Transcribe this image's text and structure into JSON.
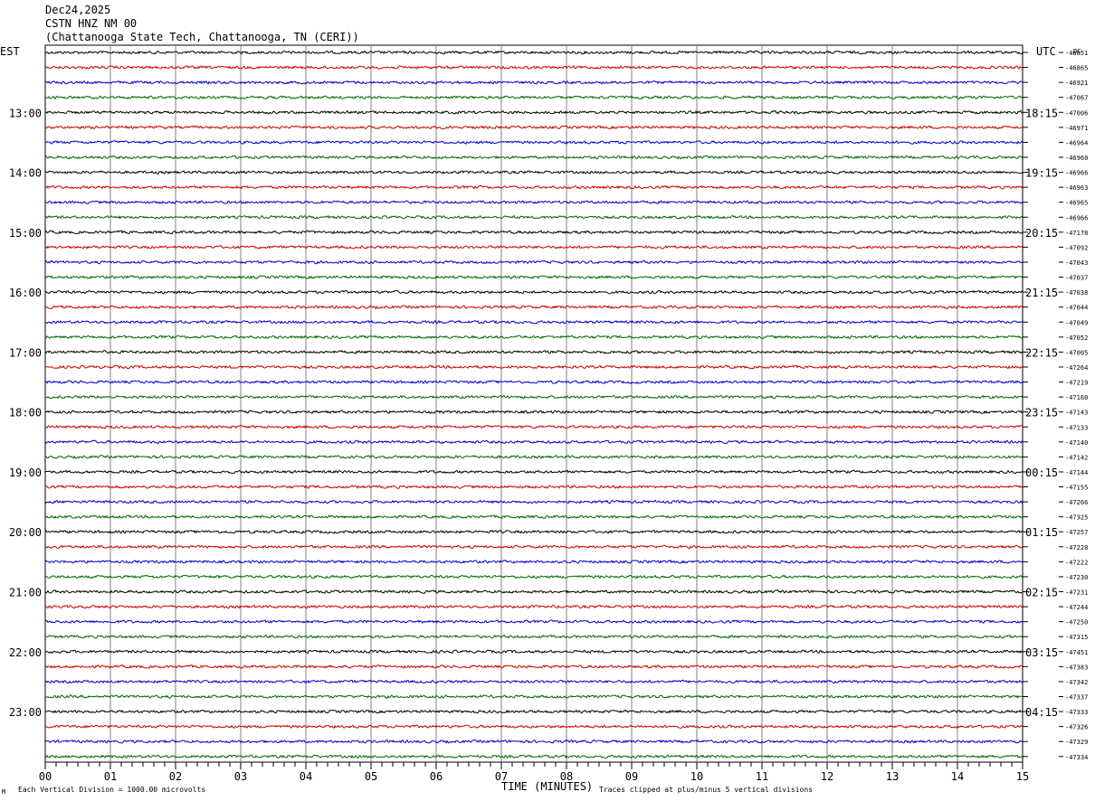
{
  "header": {
    "date": "Dec24,2025",
    "station": "CSTN HNZ NM 00",
    "location": "(Chattanooga State Tech, Chattanooga, TN (CERI))"
  },
  "left_timezone": "EST",
  "right_timezone": "UTC",
  "dc_label": "DC",
  "x_axis_title": "TIME (MINUTES)",
  "footer_left": "Each Vertical Division = 1000.00 microvolts",
  "footer_right": "Traces clipped at plus/minus 5 vertical divisions",
  "footer_mark": "M",
  "trace_colors": [
    "#000000",
    "#cc0000",
    "#0000cc",
    "#006600"
  ],
  "chart_data": {
    "type": "line",
    "subtype": "helicorder",
    "x_ticks": [
      "00",
      "01",
      "02",
      "03",
      "04",
      "05",
      "06",
      "07",
      "08",
      "09",
      "10",
      "11",
      "12",
      "13",
      "14",
      "15"
    ],
    "x_range": [
      0,
      15
    ],
    "x_unit": "minutes",
    "rows_per_hour": 4,
    "left_hour_labels": [
      "13:00",
      "14:00",
      "15:00",
      "16:00",
      "17:00",
      "18:00",
      "19:00",
      "20:00",
      "21:00",
      "22:00",
      "23:00"
    ],
    "right_hour_labels": [
      "18:15",
      "19:15",
      "20:15",
      "21:15",
      "22:15",
      "23:15",
      "00:15",
      "01:15",
      "02:15",
      "03:15",
      "04:15"
    ],
    "dc_offsets": [
      -46851,
      -46865,
      -46921,
      -47067,
      -47006,
      -46971,
      -46964,
      -46960,
      -46966,
      -46963,
      -46965,
      -46966,
      -47178,
      -47092,
      -47043,
      -47037,
      -47038,
      -47044,
      -47049,
      -47052,
      -47005,
      -47264,
      -47219,
      -47160,
      -47143,
      -47133,
      -47140,
      -47142,
      -47144,
      -47155,
      -47266,
      -47325,
      -47257,
      -47228,
      -47222,
      -47230,
      -47231,
      -47244,
      -47250,
      -47315,
      -47451,
      -47383,
      -47342,
      -47337,
      -47333,
      -47326,
      -47329,
      -47334
    ],
    "grid": true
  }
}
